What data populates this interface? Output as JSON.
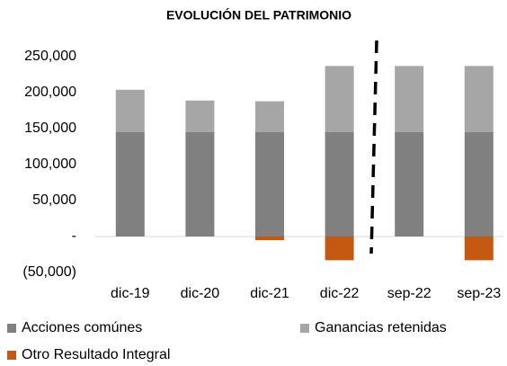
{
  "chart_data": {
    "type": "stacked_bar",
    "title": "EVOLUCIÓN DEL PATRIMONIO",
    "categories": [
      "dic-19",
      "dic-20",
      "dic-21",
      "dic-22",
      "sep-22",
      "sep-23"
    ],
    "series": [
      {
        "name": "Acciones comúnes",
        "color": "#808080",
        "values": [
          145000,
          145000,
          145000,
          145000,
          145000,
          145000
        ]
      },
      {
        "name": "Ganancias retenidas",
        "color": "#a6a6a6",
        "values": [
          59000,
          44000,
          43000,
          92000,
          92000,
          92000
        ]
      },
      {
        "name": "Otro Resultado Integral",
        "color": "#c65911",
        "values": [
          0,
          0,
          -5000,
          -33000,
          0,
          -33000
        ]
      }
    ],
    "ylim": [
      -50000,
      250000
    ],
    "yticks": [
      {
        "value": -50000,
        "label": "(50,000)"
      },
      {
        "value": 0,
        "label": "-"
      },
      {
        "value": 50000,
        "label": "50,000"
      },
      {
        "value": 100000,
        "label": "100,000"
      },
      {
        "value": 150000,
        "label": "150,000"
      },
      {
        "value": 200000,
        "label": "200,000"
      },
      {
        "value": 250000,
        "label": "250,000"
      }
    ],
    "grid": false
  }
}
